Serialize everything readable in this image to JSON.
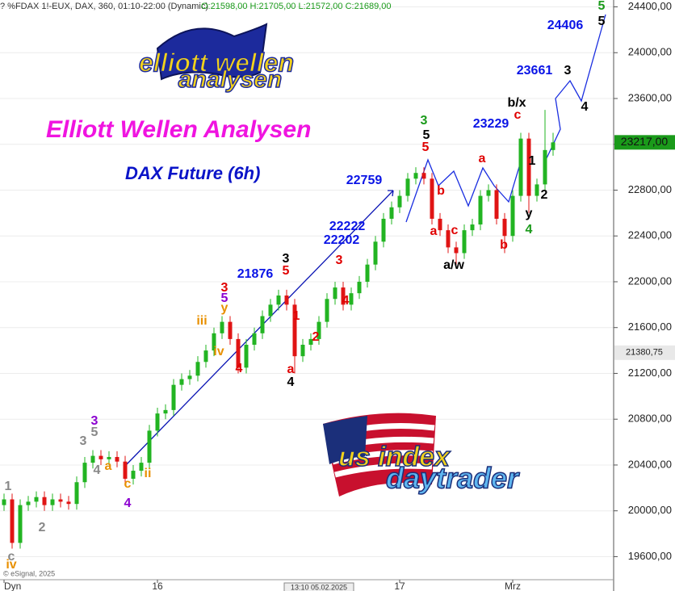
{
  "chart_data": {
    "type": "candlestick",
    "header": "? %FDAX 1!-EUX, DAX, 360, 01:10-22:00 (Dynamic)",
    "ohlc_readout": "O:21598,00 H:21705,00 L:21572,00 C:21689,00",
    "title": "Elliott Wellen Analysen",
    "subtitle": "DAX Future (6h)",
    "categories": [
      "Dyn",
      null,
      null,
      null,
      null,
      null,
      null,
      null,
      null,
      null,
      null,
      null,
      null,
      null,
      null,
      null,
      null,
      null,
      null,
      "16",
      null,
      null,
      null,
      null,
      null,
      null,
      null,
      null,
      null,
      null,
      null,
      null,
      null,
      null,
      null,
      null,
      null,
      null,
      null,
      null,
      null,
      null,
      null,
      null,
      null,
      null,
      null,
      null,
      null,
      "17",
      null,
      null,
      null,
      null,
      null,
      null,
      null,
      null,
      null,
      null,
      null,
      null,
      null,
      "Mrz",
      null,
      null,
      null,
      null,
      null
    ],
    "candles": {
      "open": [
        20050,
        20100,
        19720,
        20050,
        20080,
        20120,
        20050,
        20100,
        20080,
        20060,
        20250,
        20420,
        20480,
        20450,
        20470,
        20430,
        20280,
        20350,
        20420,
        20700,
        20850,
        20880,
        21100,
        21150,
        21180,
        21300,
        21400,
        21550,
        21650,
        21500,
        21250,
        21450,
        21550,
        21700,
        21800,
        21880,
        21800,
        21350,
        21450,
        21500,
        21650,
        21850,
        21950,
        21800,
        21900,
        22000,
        22150,
        22350,
        22550,
        22650,
        22750,
        22900,
        22950,
        22900,
        22550,
        22450,
        22300,
        22250,
        22450,
        22500,
        22750,
        22800,
        22550,
        22400,
        22750,
        23250,
        22750,
        22850,
        23150
      ],
      "high": [
        20150,
        20150,
        20100,
        20130,
        20170,
        20170,
        20150,
        20150,
        20130,
        20300,
        20470,
        20530,
        20530,
        20520,
        20520,
        20480,
        20400,
        20470,
        20750,
        20900,
        20930,
        21150,
        21200,
        21230,
        21350,
        21450,
        21600,
        21700,
        21700,
        21550,
        21500,
        21600,
        21750,
        21850,
        21930,
        21930,
        21850,
        21500,
        21550,
        21700,
        21900,
        22000,
        22000,
        21950,
        22050,
        22200,
        22400,
        22600,
        22700,
        22800,
        22950,
        23000,
        23000,
        22950,
        22600,
        22500,
        22350,
        22500,
        22550,
        22800,
        22850,
        22850,
        22600,
        22800,
        23300,
        23300,
        22900,
        23500,
        23300
      ],
      "low": [
        20000,
        19670,
        19670,
        20000,
        20030,
        20000,
        20000,
        20030,
        20010,
        20010,
        20200,
        20370,
        20400,
        20400,
        20380,
        20230,
        20230,
        20300,
        20370,
        20650,
        20800,
        20830,
        21050,
        21100,
        21130,
        21250,
        21350,
        21500,
        21450,
        21200,
        21200,
        21400,
        21500,
        21650,
        21750,
        21750,
        21200,
        21300,
        21400,
        21450,
        21600,
        21800,
        21750,
        21750,
        21850,
        21950,
        22100,
        22300,
        22500,
        22600,
        22700,
        22850,
        22850,
        22500,
        22400,
        22250,
        22150,
        22200,
        22400,
        22450,
        22700,
        22500,
        22250,
        22350,
        22700,
        22600,
        22700,
        22800,
        23100
      ],
      "close": [
        20100,
        19720,
        20050,
        20080,
        20120,
        20050,
        20100,
        20080,
        20060,
        20250,
        20420,
        20480,
        20450,
        20470,
        20430,
        20280,
        20350,
        20420,
        20700,
        20850,
        20880,
        21100,
        21150,
        21180,
        21300,
        21400,
        21550,
        21650,
        21500,
        21250,
        21450,
        21550,
        21700,
        21800,
        21880,
        21800,
        21350,
        21450,
        21500,
        21650,
        21850,
        21950,
        21800,
        21900,
        22000,
        22150,
        22350,
        22550,
        22650,
        22750,
        22900,
        22950,
        22900,
        22550,
        22450,
        22300,
        22250,
        22450,
        22500,
        22750,
        22800,
        22550,
        22400,
        22750,
        23250,
        22750,
        22850,
        23150,
        23217
      ]
    },
    "up_color": "#22b422",
    "down_color": "#e01414",
    "ylim": [
      19300,
      24460
    ],
    "yticks": [
      {
        "value": 19600,
        "label": "19600,00"
      },
      {
        "value": 20000,
        "label": "20000,00"
      },
      {
        "value": 20400,
        "label": "20400,00"
      },
      {
        "value": 20800,
        "label": "20800,00"
      },
      {
        "value": 21200,
        "label": "21200,00"
      },
      {
        "value": 21600,
        "label": "21600,00"
      },
      {
        "value": 22000,
        "label": "22000,00"
      },
      {
        "value": 22400,
        "label": "22400,00"
      },
      {
        "value": 22800,
        "label": "22800,00"
      },
      {
        "value": 23200,
        "label": "23200,00"
      },
      {
        "value": 23600,
        "label": "23600,00"
      },
      {
        "value": 24000,
        "label": "24000,00"
      },
      {
        "value": 24400,
        "label": "24400,00"
      }
    ],
    "last_price": {
      "value": 23217,
      "label": "23217,00"
    },
    "ref_price": {
      "value": 21380.75,
      "label": "21380,75"
    },
    "annotations": [
      {
        "text": "24406",
        "color": "#0a14e6"
      },
      {
        "text": "5",
        "color": "#1a9a1a"
      },
      {
        "text": "5",
        "color": "#000000"
      },
      {
        "text": "3",
        "color": "#000000"
      },
      {
        "text": "23661",
        "color": "#0a14e6"
      },
      {
        "text": "4",
        "color": "#000000"
      },
      {
        "text": "b/x",
        "color": "#000000"
      },
      {
        "text": "c",
        "color": "#e00000"
      },
      {
        "text": "23229",
        "color": "#0a14e6"
      },
      {
        "text": "1",
        "color": "#000000"
      },
      {
        "text": "2",
        "color": "#000000"
      },
      {
        "text": "y",
        "color": "#000000"
      },
      {
        "text": "4",
        "color": "#1a9a1a"
      },
      {
        "text": "3",
        "color": "#1a9a1a"
      },
      {
        "text": "5",
        "color": "#000000"
      },
      {
        "text": "5",
        "color": "#e00000"
      },
      {
        "text": "22759",
        "color": "#0a14e6"
      },
      {
        "text": "b",
        "color": "#e00000"
      },
      {
        "text": "a",
        "color": "#e00000"
      },
      {
        "text": "c",
        "color": "#e00000"
      },
      {
        "text": "a/w",
        "color": "#000000"
      },
      {
        "text": "a",
        "color": "#e00000"
      },
      {
        "text": "b",
        "color": "#e00000"
      },
      {
        "text": "22222",
        "color": "#0a14e6"
      },
      {
        "text": "22202",
        "color": "#0a14e6"
      },
      {
        "text": "3",
        "color": "#e00000"
      },
      {
        "text": "4",
        "color": "#e00000"
      },
      {
        "text": "21876",
        "color": "#0a14e6"
      },
      {
        "text": "3",
        "color": "#000000"
      },
      {
        "text": "5",
        "color": "#e00000"
      },
      {
        "text": "1",
        "color": "#e00000"
      },
      {
        "text": "2",
        "color": "#e00000"
      },
      {
        "text": "a",
        "color": "#e00000"
      },
      {
        "text": "4",
        "color": "#000000"
      },
      {
        "text": "3",
        "color": "#e00000"
      },
      {
        "text": "5",
        "color": "#8b00d0"
      },
      {
        "text": "y",
        "color": "#e89000"
      },
      {
        "text": "iii",
        "color": "#e89000"
      },
      {
        "text": "iv",
        "color": "#e89000"
      },
      {
        "text": "4",
        "color": "#e00000"
      },
      {
        "text": "3",
        "color": "#8b00d0"
      },
      {
        "text": "5",
        "color": "#888888"
      },
      {
        "text": "3",
        "color": "#888888"
      },
      {
        "text": "4",
        "color": "#888888"
      },
      {
        "text": "a",
        "color": "#e89000"
      },
      {
        "text": "c",
        "color": "#e89000"
      },
      {
        "text": "4",
        "color": "#8b00d0"
      },
      {
        "text": "ii",
        "color": "#e89000"
      },
      {
        "text": "1",
        "color": "#888888"
      },
      {
        "text": "2",
        "color": "#888888"
      },
      {
        "text": "c",
        "color": "#888888"
      },
      {
        "text": "iv",
        "color": "#e89000"
      }
    ],
    "logo_top": [
      "elliott wellen",
      "analysen"
    ],
    "logo_bottom": [
      "us index",
      "daytrader"
    ],
    "copyright": "© eSignal, 2025",
    "date_box": "13:10 05.02.2025"
  }
}
